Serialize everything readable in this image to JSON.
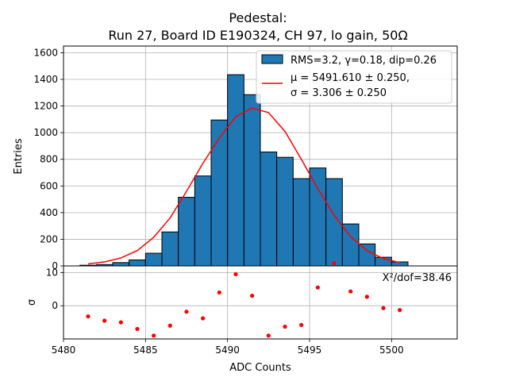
{
  "chart_data": {
    "type": "bar",
    "title_line1": "Pedestal:",
    "title_line2": "Run 27, Board ID E190324, CH 97, lo gain, 50Ω",
    "xlabel": "ADC Counts",
    "ylabel_top": "Entries",
    "ylabel_bottom": "σ",
    "xlim": [
      5480,
      5504
    ],
    "ylim_top": [
      0,
      1650
    ],
    "ylim_bottom": [
      -10,
      12
    ],
    "x_ticks": [
      5480,
      5485,
      5490,
      5495,
      5500
    ],
    "y_ticks_top": [
      0,
      200,
      400,
      600,
      800,
      1000,
      1200,
      1400,
      1600
    ],
    "y_ticks_bottom": [
      0,
      10
    ],
    "grid": true,
    "legend_placement": "upper right",
    "histogram": {
      "name": "RMS=3.2, γ=0.18, dip=0.26",
      "color": "#1f77b4",
      "bin_edges": [
        5481,
        5482,
        5483,
        5484,
        5485,
        5486,
        5487,
        5488,
        5489,
        5490,
        5491,
        5492,
        5493,
        5494,
        5495,
        5496,
        5497,
        5498,
        5499,
        5500,
        5501
      ],
      "counts": [
        5,
        10,
        25,
        45,
        95,
        255,
        515,
        675,
        1095,
        1435,
        1285,
        855,
        815,
        655,
        735,
        655,
        315,
        165,
        65,
        30
      ]
    },
    "fit": {
      "line1": "μ = 5491.610 ± 0.250,",
      "line2": "σ = 3.306 ± 0.250",
      "color": "#ff0000",
      "x": [
        5481.5,
        5482.5,
        5483.5,
        5484.5,
        5485.5,
        5486.5,
        5487.5,
        5488.5,
        5489.5,
        5490.5,
        5491.5,
        5492.5,
        5493.5,
        5494.5,
        5495.5,
        5496.5,
        5497.5,
        5498.5,
        5499.5,
        5500.5
      ],
      "y": [
        15,
        30,
        60,
        115,
        215,
        360,
        560,
        770,
        960,
        1120,
        1185,
        1150,
        1010,
        800,
        580,
        380,
        220,
        115,
        55,
        25
      ]
    },
    "residuals": {
      "color": "#ff0000",
      "x": [
        5481.5,
        5482.5,
        5483.5,
        5484.5,
        5485.5,
        5486.5,
        5487.5,
        5488.5,
        5489.5,
        5490.5,
        5491.5,
        5492.5,
        5493.5,
        5494.5,
        5495.5,
        5496.5,
        5497.5,
        5498.5,
        5499.5,
        5500.5
      ],
      "y": [
        -3.2,
        -4.5,
        -5.0,
        -7.0,
        -9.0,
        -6.0,
        -1.8,
        -3.8,
        4.0,
        9.5,
        3.0,
        -9.0,
        -6.3,
        -5.8,
        5.5,
        12.8,
        4.3,
        2.7,
        -0.7,
        -1.3
      ]
    },
    "chi2_label": "X²/dof=38.46"
  }
}
